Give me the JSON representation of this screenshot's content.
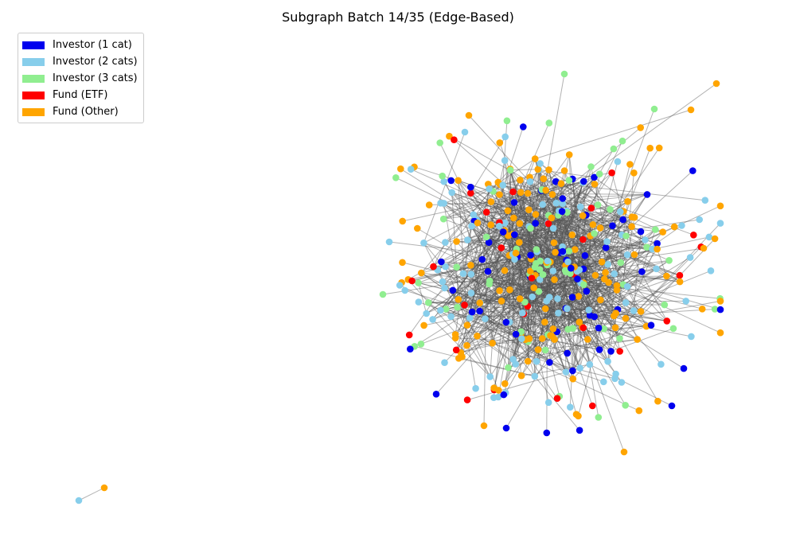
{
  "title": "Subgraph Batch 14/35 (Edge-Based)",
  "legend": [
    {
      "label": "Investor (1 cat)",
      "color": "#0000ee"
    },
    {
      "label": "Investor (2 cats)",
      "color": "#87ceeb"
    },
    {
      "label": "Investor (3 cats)",
      "color": "#90ee90"
    },
    {
      "label": "Fund (ETF)",
      "color": "#ff0000"
    },
    {
      "label": "Fund (Other)",
      "color": "#ffa500"
    }
  ],
  "edge_color": "#555555"
}
